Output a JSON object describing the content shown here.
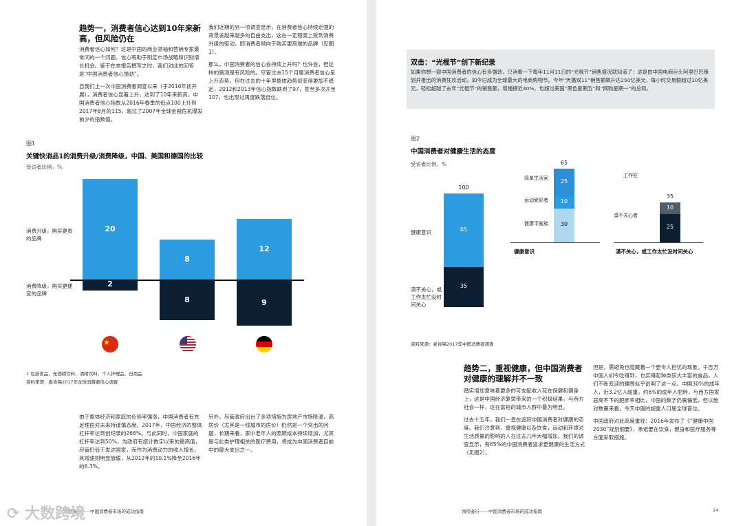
{
  "left": {
    "heading1": "趋势一，消费者信心达到10年来新高，但风险仍在",
    "col1_p1": "消费者信心如何？这是中国的商业领袖和营销专家最常问的一个问题。信心有助于制定市场战略和识别增长机会。鉴于在本报告撰写之时，我们对此的回答是“中国消费者信心强劲”。",
    "col1_p2": "自我们上一次中国消费者调查以来（于2016年初开展），消费者信心显著上升，达到了10年来新高。中国消费者信心指数从2016年春季的低点100上升到2017年8月的115，超过了2007年全球金融危机爆发前夕的指数值。",
    "col2_p1": "我们近期的另一项调查显示，在消费者信心持续走强的背景发越来越多的自由支出，这在一定程度上受到消费升级的驱动，即消费者倾向于购买更高端的品牌（见图1）。",
    "col2_p2": "那么，中国消费者的信心会持续上升吗？也许会，但这样的猜测是有风险的。尽管过去15个月里消费者信心呈上升态势，但在过去的十年里整体趋势却变得更加不稳定，2012和2013年信心指数跌到了97，甚至多次开至107，也出现过再度跌落低位。",
    "fig1": {
      "no": "图1",
      "title": "关键快消品1的消费升级/消费降级，中国、美国和德国的比较",
      "subtitle": "受访者比例，%",
      "upgrade_label": "消费升级，购买更贵的品牌",
      "downgrade_label": "消费降级，购买更便宜的品牌",
      "footnote": "1 包括食品、无酒精饮料、酒精饮料、个人护理品、日用品",
      "source": "资料来源：麦肯锡2017年全球消费者信心调查"
    },
    "col3_p1": "由于整体经济和家庭的负债率强涨，中国消费者有充足理由对未来持谨慎态度。2017年，中国经济的整体杠杆率达到创纪录的266%。与此同时，中国家庭的杠杆率达到50%，为政府有统计数字以来的最高值，尽管仍低于发达国家，而作为消费动力的收入增长，其增速则明显放缓，从2012年的10.1%降至2016年的6.3%。",
    "col4_p1": "另外，尽管政府出台了多项措施为房地产市场降温，高房价（尤其是一线城市的房价）仍然是一个突出的问题，长期来看，家中老年人的照顾成本持续增加，尤其是与此类护理相关的医疗费用，将成为中国消费者目前中的最大支出之一。",
    "footer": "领衔者行——中国消费者市场的成功指南"
  },
  "right": {
    "callout_title": "双击：“光棍节”创下新纪录",
    "callout_body": "如果你想一窥中国消费者的信心有多强劲，只消看一下每年11月11日的“光棍节”销售盛况就知道了：这是由中国电商巨头阿里巴巴策划并推出的消费狂欢活动，如今已成为全球最大的电商购物节。今年“天猫双11”销售额飙升达250亿美元，每小时交易额超过10亿美元，轻松超越了去年“光棍节”的销售额，增幅接近40%，也超过美国“黑色星期五”和“网购星期一”的总和。",
    "fig2": {
      "no": "图2",
      "title": "中国消费者对健康生活的态度",
      "subtitle": "受访者比例，%",
      "left_label_top": "健康意识",
      "left_label_bottom": "漠不关心，或工作太忙没时间关心",
      "mid_leg1": "简单生活家",
      "mid_leg2": "运动爱好者",
      "mid_leg3": "健康平衡族",
      "right_leg1": "工作狂",
      "right_leg2": "漠不关心者",
      "sec_health": "健康意识",
      "sec_indiff": "漠不关心，或工作太忙没时间关心",
      "source": "资料来源：麦肯锡2017年中国消费者调查"
    },
    "heading2": "趋势二，重视健康，但中国消费者对健康的理解并不一致",
    "colA_p1": "踏实增加意味着更多的可支配收入花在保健和健身上，这是中国经济繁荣带来的一个积极结果，与西方社会一样，这在富裕的城市人群中最为明显。",
    "colA_p2": "过去十五年，我们一直在追踪中国消费者对健康的态度。我们注意到，重视健康以及饮食，运动和环境对生活质量的影响的人在过去几年大幅增加。我们的调查显示，有65%的中国消费者追求更健康的生活方式（见图2）。",
    "colB_p1": "但是，需避免也隐藏着一个更令人担忧的现象。千百万中国人如今吃得到，也买得起种类较大丰富的食品，人们不断变迎的腰围似乎说明了这一点。中国30%的成年人，近3.2亿人超重，约6%的成年人肥胖，与西方国家居高不下的肥胖率相比，中国的数字仍属偏低，但以绝对数量来看，今天中国的超重人口居全球首位。",
    "colB_p2": "中国政府对此高度重视：2016年发布了《“健康中国2030”规划纲要》，承诺要在饮食，健身和医疗服务等方面采取措施。",
    "footer": "领衔者行——中国消费者市场的成功指南",
    "page_no": "14"
  },
  "watermark": "大数跨境",
  "colors": {
    "blue": "#2d9be0",
    "navy": "#0d1f33",
    "light_blue": "#aed8ef",
    "mid_blue": "#2d8fd6",
    "gray": "#4f5d69"
  },
  "chart_data": [
    {
      "type": "bar",
      "categories": [
        "中国",
        "美国",
        "德国"
      ],
      "series": [
        {
          "name": "消费升级，购买更贵的品牌",
          "values": [
            20,
            8,
            12
          ]
        },
        {
          "name": "消费降级，购买更便宜的品牌",
          "values": [
            2,
            8,
            9
          ]
        }
      ],
      "title": "关键快消品1的消费升级/消费降级，中国、美国和德国的比较",
      "ylabel": "受访者比例，%"
    },
    {
      "type": "bar",
      "categories": [
        "健康意识 / 漠不关心",
        "健康意识",
        "漠不关心，或工作太忙没时间关心"
      ],
      "totals": [
        100,
        65,
        35
      ],
      "segments": [
        [
          {
            "name": "健康意识",
            "value": 65
          },
          {
            "name": "漠不关心，或工作太忙没时间关心",
            "value": 35
          }
        ],
        [
          {
            "name": "简单生活家",
            "value": 25
          },
          {
            "name": "运动爱好者",
            "value": 10
          },
          {
            "name": "健康平衡族",
            "value": 30
          }
        ],
        [
          {
            "name": "工作狂",
            "value": 10
          },
          {
            "name": "漠不关心者",
            "value": 25
          }
        ]
      ],
      "title": "中国消费者对健康生活的态度",
      "ylabel": "受访者比例，%"
    }
  ]
}
